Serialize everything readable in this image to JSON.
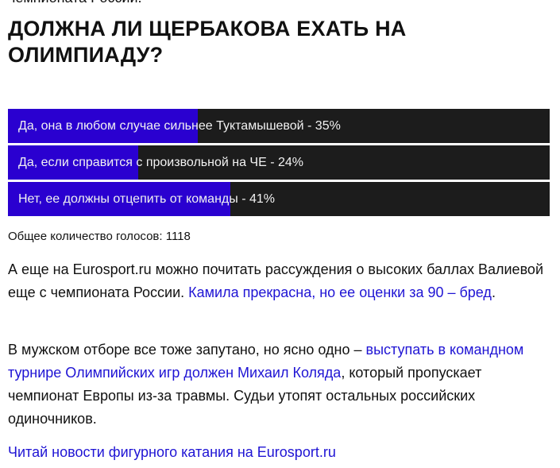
{
  "cut_text": "чемпионата России.",
  "title": "ДОЛЖНА ЛИ ЩЕРБАКОВА ЕХАТЬ НА ОЛИМПИАДУ?",
  "poll": {
    "accent": "#2a00d0",
    "options": [
      {
        "label": "Да, она в любом случае сильнее Туктамышевой - 35%",
        "percent": 35
      },
      {
        "label": "Да, если справится с произвольной на ЧЕ - 24%",
        "percent": 24
      },
      {
        "label": "Нет, ее должны отцепить от команды - 41%",
        "percent": 41
      }
    ],
    "total": "Общее количество голосов: 1118"
  },
  "p1": {
    "text": "А еще на Eurosport.ru можно почитать рассуждения о высоких баллах Валиевой еще с чемпионата России. ",
    "link": "Камила прекрасна, но ее оценки за 90 – бред",
    "end": "."
  },
  "p2": {
    "text": "В мужском отборе все тоже запутано, но ясно одно – ",
    "link": "выступать в командном турнире Олимпийских игр должен Михаил Коляда",
    "end": ", который пропускает чемпионат Европы из-за травмы. Судьи утопят остальных российских одиночников."
  },
  "p3": {
    "link": "Читай новости фигурного катания на Eurosport.ru"
  }
}
